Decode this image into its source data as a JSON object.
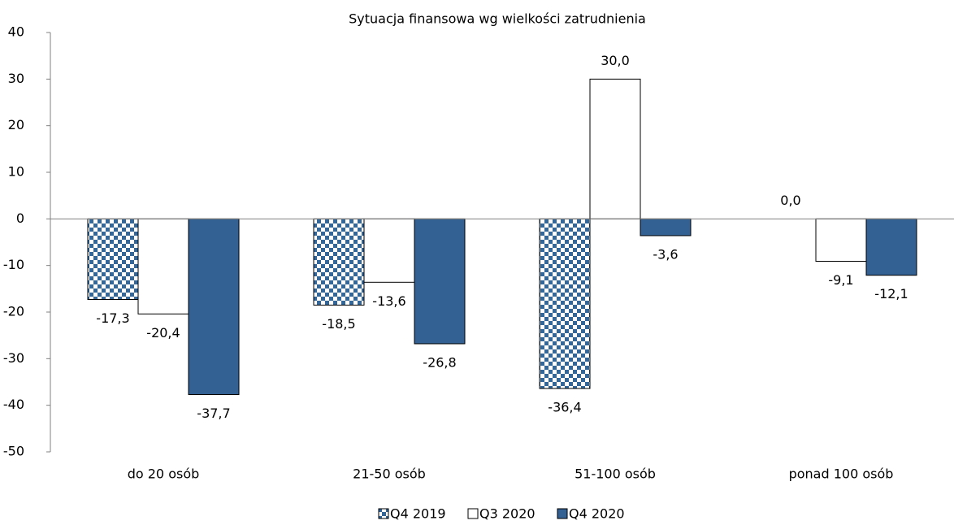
{
  "chart_data": {
    "type": "bar",
    "title": "Sytuacja finansowa wg wielkości zatrudnienia",
    "categories": [
      "do 20 osób",
      "21-50 osób",
      "51-100 osób",
      "ponad 100 osób"
    ],
    "series": [
      {
        "name": "Q4 2019",
        "color": "#336699",
        "pattern": "checkerboard",
        "values": [
          -17.3,
          -18.5,
          -36.4,
          0.0
        ],
        "value_labels": [
          "-17,3",
          "-18,5",
          "-36,4",
          "0,0"
        ]
      },
      {
        "name": "Q3 2020",
        "color": "#ffffff",
        "values": [
          -20.4,
          -13.6,
          30.0,
          -9.1
        ],
        "value_labels": [
          "-20,4",
          "-13,6",
          "30,0",
          "-9,1"
        ]
      },
      {
        "name": "Q4 2020",
        "color": "#336194",
        "values": [
          -37.7,
          -26.8,
          -3.6,
          -12.1
        ],
        "value_labels": [
          "-37,7",
          "-26,8",
          "-3,6",
          "-12,1"
        ]
      }
    ],
    "ylim": [
      -50,
      40
    ],
    "yticks": [
      -50,
      -40,
      -30,
      -20,
      -10,
      0,
      10,
      20,
      30,
      40
    ],
    "grid": false,
    "legend": "bottom"
  }
}
